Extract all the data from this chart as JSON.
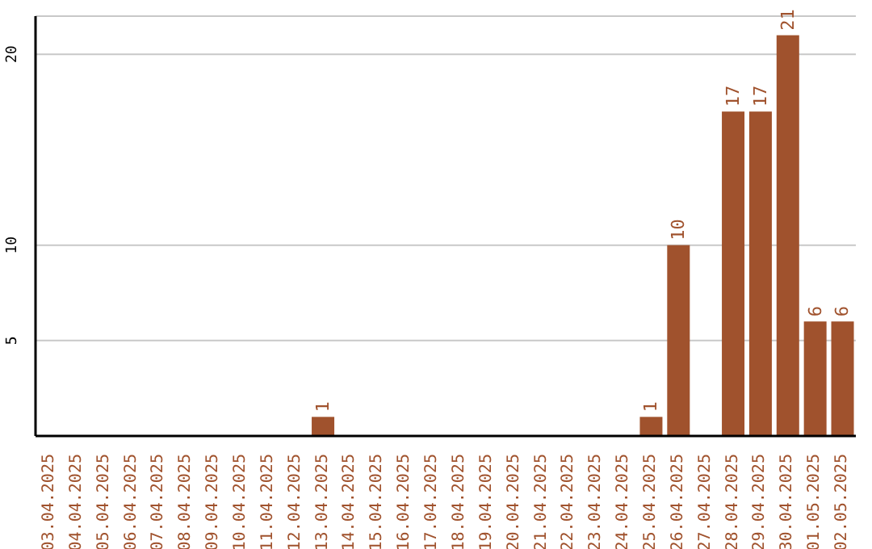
{
  "chart_data": {
    "type": "bar",
    "categories": [
      "03.04.2025",
      "04.04.2025",
      "05.04.2025",
      "06.04.2025",
      "07.04.2025",
      "08.04.2025",
      "09.04.2025",
      "10.04.2025",
      "11.04.2025",
      "12.04.2025",
      "13.04.2025",
      "14.04.2025",
      "15.04.2025",
      "16.04.2025",
      "17.04.2025",
      "18.04.2025",
      "19.04.2025",
      "20.04.2025",
      "21.04.2025",
      "22.04.2025",
      "23.04.2025",
      "24.04.2025",
      "25.04.2025",
      "26.04.2025",
      "27.04.2025",
      "28.04.2025",
      "29.04.2025",
      "30.04.2025",
      "01.05.2025",
      "02.05.2025"
    ],
    "values": [
      0,
      0,
      0,
      0,
      0,
      0,
      0,
      0,
      0,
      0,
      1,
      0,
      0,
      0,
      0,
      0,
      0,
      0,
      0,
      0,
      0,
      0,
      1,
      10,
      0,
      17,
      17,
      21,
      6,
      6
    ],
    "value_labels": [
      null,
      null,
      null,
      null,
      null,
      null,
      null,
      null,
      null,
      null,
      "1",
      null,
      null,
      null,
      null,
      null,
      null,
      null,
      null,
      null,
      null,
      null,
      "1",
      "10",
      null,
      "17",
      "17",
      "21",
      "6",
      "6"
    ],
    "color": "#a0522d",
    "ylim": [
      0,
      22
    ],
    "yticks": [
      5,
      10,
      20
    ],
    "grid": "y"
  }
}
